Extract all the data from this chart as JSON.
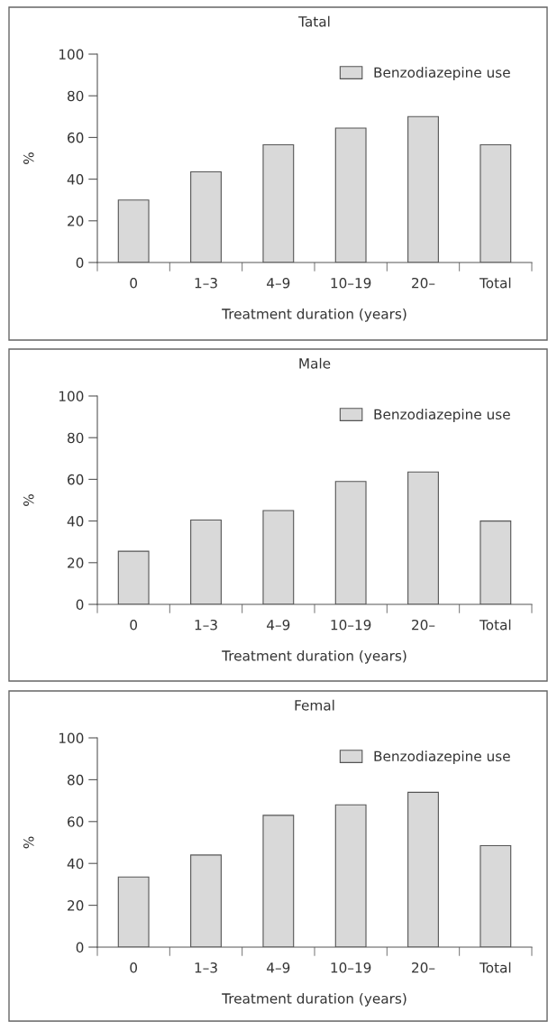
{
  "chart_data": [
    {
      "type": "bar",
      "title": "Tatal",
      "xlabel": "Treatment duration (years)",
      "ylabel": "%",
      "categories": [
        "0",
        "1–3",
        "4–9",
        "10–19",
        "20–",
        "Total"
      ],
      "series": [
        {
          "name": "Benzodiazepine use",
          "color": "#d9d9d9",
          "values": [
            30,
            43.5,
            56.5,
            64.5,
            70,
            56.5
          ]
        }
      ],
      "ylim": [
        0,
        100
      ],
      "yticks": [
        0,
        20,
        40,
        60,
        80,
        100
      ],
      "legend": "top right"
    },
    {
      "type": "bar",
      "title": "Male",
      "xlabel": "Treatment duration (years)",
      "ylabel": "%",
      "categories": [
        "0",
        "1–3",
        "4–9",
        "10–19",
        "20–",
        "Total"
      ],
      "series": [
        {
          "name": "Benzodiazepine use",
          "color": "#d9d9d9",
          "values": [
            25.5,
            40.5,
            45,
            59,
            63.5,
            40
          ]
        }
      ],
      "ylim": [
        0,
        100
      ],
      "yticks": [
        0,
        20,
        40,
        60,
        80,
        100
      ],
      "legend": "top right"
    },
    {
      "type": "bar",
      "title": "Femal",
      "xlabel": "Treatment duration (years)",
      "ylabel": "%",
      "categories": [
        "0",
        "1–3",
        "4–9",
        "10–19",
        "20–",
        "Total"
      ],
      "series": [
        {
          "name": "Benzodiazepine use",
          "color": "#d9d9d9",
          "values": [
            33.5,
            44,
            63,
            68,
            74,
            48.5
          ]
        }
      ],
      "ylim": [
        0,
        100
      ],
      "yticks": [
        0,
        20,
        40,
        60,
        80,
        100
      ],
      "legend": "top right"
    }
  ]
}
